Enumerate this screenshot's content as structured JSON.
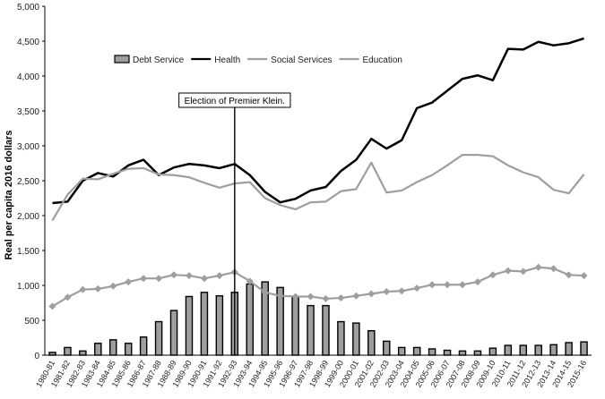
{
  "chart_data": {
    "type": "bar",
    "title": "",
    "xlabel": "",
    "ylabel": "Real per capita 2016 dollars",
    "ylim": [
      0,
      5000
    ],
    "yticks": [
      "0",
      "500",
      "1,000",
      "1,500",
      "2,000",
      "2,500",
      "3,000",
      "3,500",
      "4,000",
      "4,500",
      "5,000"
    ],
    "grid": false,
    "legend_position": "top-left",
    "categories": [
      "1980-81",
      "1981-82",
      "1982-83",
      "1983-84",
      "1984-85",
      "1985-86",
      "1986-87",
      "1987-88",
      "1988-89",
      "1989-90",
      "1990-91",
      "1991-92",
      "1992-93",
      "1993-94",
      "1994-95",
      "1995-96",
      "1996-97",
      "1997-98",
      "1998-99",
      "1999-00",
      "2000-01",
      "2001-02",
      "2002-03",
      "2003-04",
      "2004-05",
      "2005-06",
      "2006-07",
      "2007-08",
      "2008-09",
      "2009-10",
      "2010-11",
      "2011-12",
      "2012-13",
      "2013-14",
      "2014-15",
      "2015-16"
    ],
    "series": [
      {
        "name": "Debt Service",
        "kind": "bar",
        "color": "#9e9e9e",
        "values": [
          40,
          110,
          60,
          170,
          220,
          170,
          260,
          480,
          640,
          840,
          900,
          850,
          900,
          1020,
          1050,
          970,
          830,
          710,
          710,
          480,
          460,
          350,
          200,
          110,
          110,
          90,
          70,
          60,
          60,
          100,
          140,
          140,
          140,
          150,
          180,
          190
        ]
      },
      {
        "name": "Health",
        "kind": "line",
        "color": "#000000",
        "values": [
          2180,
          2200,
          2500,
          2610,
          2560,
          2720,
          2800,
          2580,
          2690,
          2740,
          2720,
          2680,
          2740,
          2580,
          2340,
          2190,
          2240,
          2360,
          2410,
          2640,
          2800,
          3100,
          2960,
          3080,
          3540,
          3620,
          3790,
          3960,
          4010,
          3940,
          4390,
          4380,
          4490,
          4440,
          4470,
          4540
        ]
      },
      {
        "name": "Social Services",
        "kind": "line-marker",
        "color": "#9e9e9e",
        "values": [
          700,
          830,
          940,
          950,
          990,
          1050,
          1100,
          1100,
          1150,
          1140,
          1100,
          1140,
          1190,
          1060,
          900,
          850,
          840,
          840,
          810,
          820,
          850,
          880,
          910,
          920,
          960,
          1010,
          1010,
          1010,
          1050,
          1150,
          1210,
          1200,
          1260,
          1240,
          1150,
          1140
        ]
      },
      {
        "name": "Education",
        "kind": "line",
        "color": "#9e9e9e",
        "values": [
          1930,
          2300,
          2530,
          2520,
          2600,
          2670,
          2680,
          2590,
          2580,
          2550,
          2470,
          2400,
          2460,
          2480,
          2250,
          2150,
          2090,
          2190,
          2200,
          2350,
          2380,
          2760,
          2330,
          2360,
          2480,
          2580,
          2720,
          2870,
          2870,
          2850,
          2720,
          2620,
          2550,
          2370,
          2320,
          2590
        ]
      }
    ],
    "annotation": {
      "text": "Election of Premier Klein.",
      "at_category": "1992-93"
    }
  }
}
